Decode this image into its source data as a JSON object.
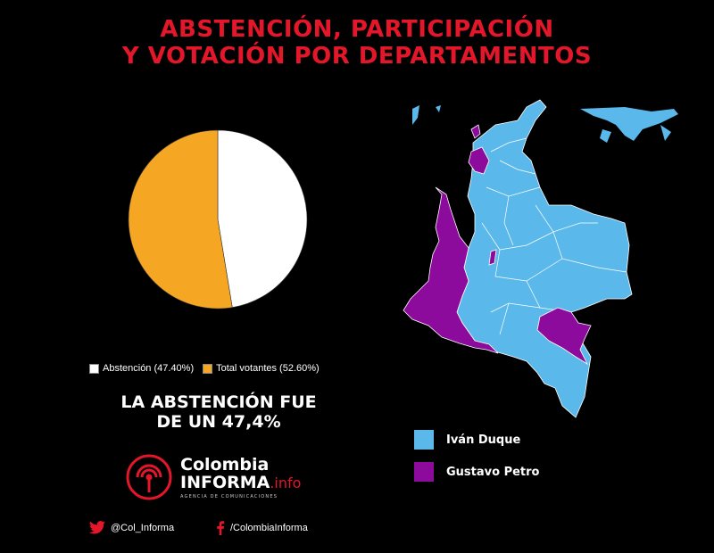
{
  "title": {
    "line1": "ABSTENCIÓN, PARTICIPACIÓN",
    "line2": "Y VOTACIÓN POR DEPARTAMENTOS"
  },
  "chart_data": {
    "type": "pie",
    "slices": [
      {
        "label": "Abstención",
        "legend": "Abstención (47.40%)",
        "value": 47.4,
        "color": "#ffffff"
      },
      {
        "label": "Total votantes",
        "legend": "Total votantes (52.60%)",
        "value": 52.6,
        "color": "#f5a623"
      }
    ],
    "legend_position": "bottom"
  },
  "abstention_note": {
    "line1": "LA ABSTENCIÓN FUE",
    "line2": "DE UN 47,4%"
  },
  "map": {
    "legend": [
      {
        "label": "Iván Duque",
        "color": "#5bb8ea"
      },
      {
        "label": "Gustavo Petro",
        "color": "#8c0a9c"
      }
    ]
  },
  "logo": {
    "line1": "Colombia",
    "line2": "INFORMA",
    "line2_suffix": ".info",
    "tagline": "AGENCIA DE COMUNICACIONES",
    "icon": "radio-signal-icon",
    "accent": "#e3162a"
  },
  "social": {
    "twitter": "@Col_Informa",
    "facebook": "/ColombiaInforma",
    "twitter_icon": "twitter-bird-icon",
    "facebook_icon": "facebook-f-icon"
  }
}
